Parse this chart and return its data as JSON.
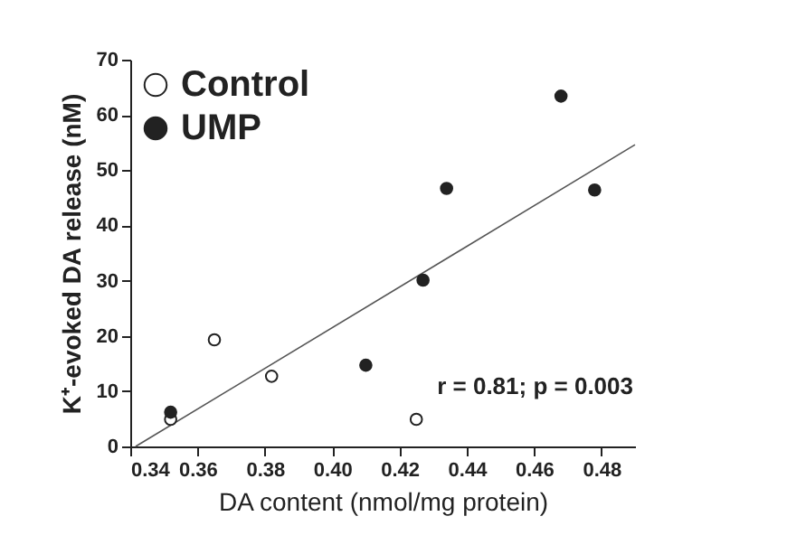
{
  "chart_data": {
    "type": "scatter",
    "xlabel": "DA content (nmol/mg protein)",
    "ylabel": "K⁺-evoked DA release (nM)",
    "xlim": [
      0.34,
      0.49
    ],
    "ylim": [
      0,
      70
    ],
    "xticks": [
      {
        "value": 0.34,
        "label": "0.34"
      },
      {
        "value": 0.36,
        "label": "0.36"
      },
      {
        "value": 0.38,
        "label": "0.38"
      },
      {
        "value": 0.4,
        "label": "0.40"
      },
      {
        "value": 0.42,
        "label": "0.42"
      },
      {
        "value": 0.44,
        "label": "0.44"
      },
      {
        "value": 0.46,
        "label": "0.46"
      },
      {
        "value": 0.48,
        "label": "0.48"
      }
    ],
    "yticks": [
      0,
      10,
      20,
      30,
      40,
      50,
      60,
      70
    ],
    "grid": false,
    "legend": "top left",
    "marker": "circle",
    "series": [
      {
        "name": "Control",
        "color": "#ffffff",
        "x": [
          0.352,
          0.365,
          0.382,
          0.425
        ],
        "values": [
          4.9,
          19.3,
          12.7,
          4.9
        ]
      },
      {
        "name": "UMP",
        "color": "#222222",
        "x": [
          0.352,
          0.41,
          0.427,
          0.434,
          0.468,
          0.478
        ],
        "values": [
          6.2,
          14.7,
          30.1,
          46.7,
          63.4,
          46.4
        ]
      },
      {
        "type": "line",
        "marker": "none",
        "color": "#555555",
        "x": [
          0.3416,
          0.49
        ],
        "values": [
          0,
          54.6
        ]
      }
    ],
    "annotations": [
      "r = 0.81; p = 0.003"
    ]
  }
}
